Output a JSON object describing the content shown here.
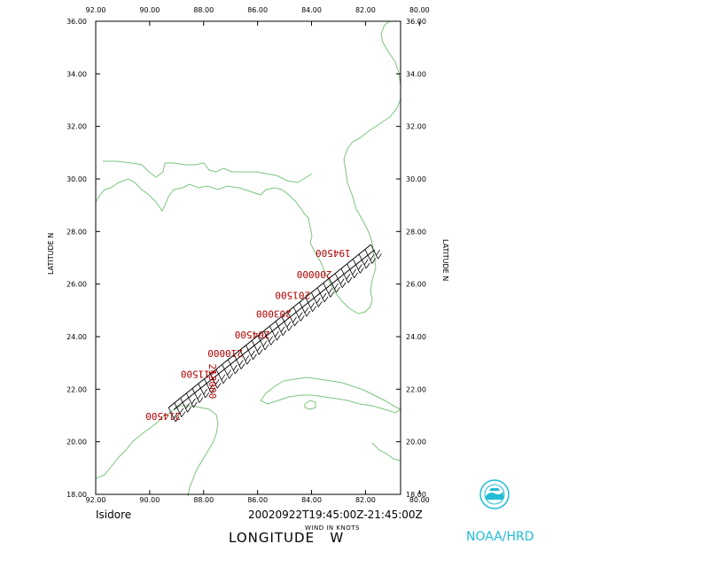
{
  "map": {
    "lon_ticks": [
      "92.00",
      "90.00",
      "88.00",
      "86.00",
      "84.00",
      "82.00",
      "80.00"
    ],
    "lat_ticks": [
      "18.00",
      "20.00",
      "22.00",
      "24.00",
      "26.00",
      "28.00",
      "30.00",
      "32.00",
      "34.00",
      "36.00"
    ],
    "lon_range_w": [
      92,
      80.7
    ],
    "lat_range_n": [
      18,
      36
    ],
    "lat_axis_label": "LATITUDE   N",
    "coast_color": "#7cc47c",
    "track_label_color": "#b00000"
  },
  "flight": {
    "storm_name": "Isidore",
    "time_window": "20020922T19:45:00Z-21:45:00Z",
    "wind_units": "WIND IN KNOTS",
    "track_start": {
      "lon_w": 81.8,
      "lat_n": 27.5
    },
    "track_end": {
      "lon_w": 89.3,
      "lat_n": 21.3
    },
    "time_labels": [
      {
        "text": "194500",
        "lon_w": 83.2,
        "lat_n": 27.3
      },
      {
        "text": "200000",
        "lon_w": 83.9,
        "lat_n": 26.5
      },
      {
        "text": "201500",
        "lon_w": 84.7,
        "lat_n": 25.7
      },
      {
        "text": "203000",
        "lon_w": 85.4,
        "lat_n": 25.0
      },
      {
        "text": "204500",
        "lon_w": 86.2,
        "lat_n": 24.2
      },
      {
        "text": "210000",
        "lon_w": 87.2,
        "lat_n": 23.5
      },
      {
        "text": "211500",
        "lon_w": 88.2,
        "lat_n": 22.7
      },
      {
        "text": "213000",
        "lon_w": 87.8,
        "lat_n": 22.3
      },
      {
        "text": "214500",
        "lon_w": 89.5,
        "lat_n": 21.1
      }
    ]
  },
  "footer": {
    "lon_axis_label": "LONGITUDE   W",
    "credit": "NOAA/HRD"
  }
}
